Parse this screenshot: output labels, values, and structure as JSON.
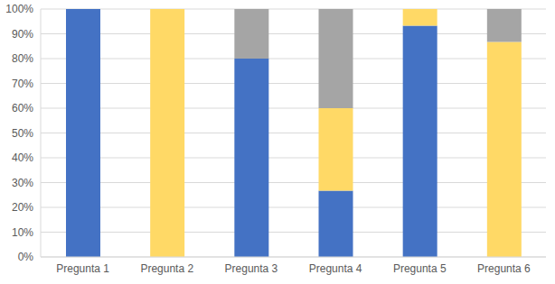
{
  "chart_data": {
    "type": "bar",
    "stacked": true,
    "grid": true,
    "categories": [
      "Pregunta 1",
      "Pregunta 2",
      "Pregunta 3",
      "Pregunta 4",
      "Pregunta 5",
      "Pregunta 6"
    ],
    "series": [
      {
        "color": "#4472c4",
        "values": [
          100,
          0,
          80,
          26.7,
          93.3,
          0
        ]
      },
      {
        "color": "#ffd966",
        "values": [
          0,
          100,
          0,
          33.3,
          6.7,
          86.7
        ]
      },
      {
        "color": "#a5a5a5",
        "values": [
          0,
          0,
          20,
          40,
          0,
          13.3
        ]
      }
    ],
    "ylim": [
      0,
      100
    ],
    "yticks": [
      {
        "value": 0,
        "label": "0%"
      },
      {
        "value": 10,
        "label": "10%"
      },
      {
        "value": 20,
        "label": "20%"
      },
      {
        "value": 30,
        "label": "30%"
      },
      {
        "value": 40,
        "label": "40%"
      },
      {
        "value": 50,
        "label": "50%"
      },
      {
        "value": 60,
        "label": "60%"
      },
      {
        "value": 70,
        "label": "70%"
      },
      {
        "value": 80,
        "label": "80%"
      },
      {
        "value": 90,
        "label": "90%"
      },
      {
        "value": 100,
        "label": "100%"
      }
    ]
  }
}
